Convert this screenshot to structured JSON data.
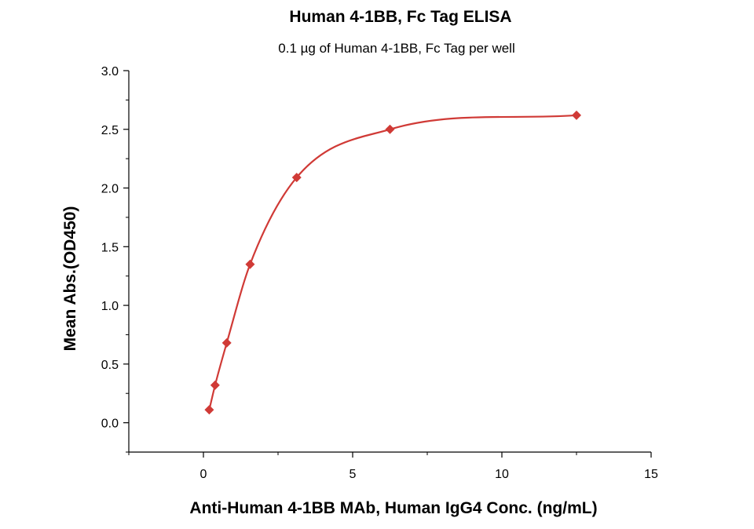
{
  "chart_data": {
    "type": "scatter",
    "title": "Human 4-1BB, Fc Tag ELISA",
    "subtitle": "0.1 µg of Human 4-1BB, Fc Tag per well",
    "xlabel": "Anti-Human 4-1BB  MAb, Human IgG4 Conc. (ng/mL)",
    "ylabel": "Mean Abs.(OD450)",
    "xlim": [
      -2.5,
      15
    ],
    "ylim": [
      -0.25,
      3.0
    ],
    "x_ticks": [
      "0",
      "5",
      "10",
      "15"
    ],
    "y_ticks": [
      "0.0",
      "0.5",
      "1.0",
      "1.5",
      "2.0",
      "2.5",
      "3.0"
    ],
    "grid": false,
    "marker_color": "#d03a36",
    "curve_color": "#d03a36",
    "series": [
      {
        "x": [
          0.195,
          0.391,
          0.781,
          1.563,
          3.125,
          6.25,
          12.5
        ],
        "y": [
          0.11,
          0.32,
          0.68,
          1.35,
          2.09,
          2.5,
          2.62
        ]
      }
    ]
  }
}
